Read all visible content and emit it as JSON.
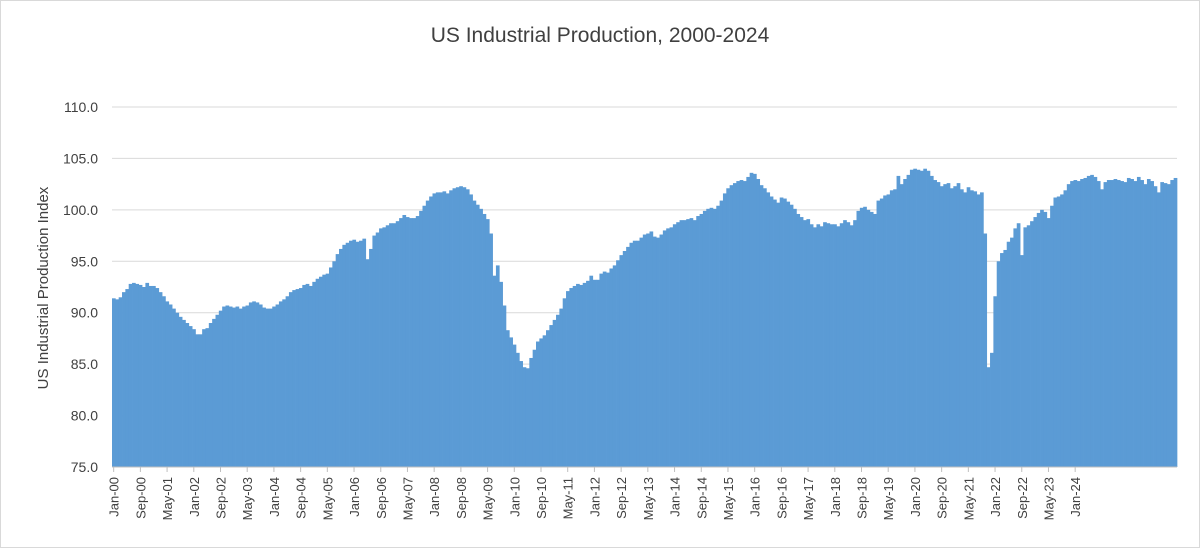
{
  "chart_data": {
    "type": "bar",
    "title": "US Industrial Production, 2000-2024",
    "xlabel": "",
    "ylabel": "US Industrial Production Index",
    "ylim": [
      75,
      110
    ],
    "yticks": [
      "75.0",
      "80.0",
      "85.0",
      "90.0",
      "95.0",
      "100.0",
      "105.0",
      "110.0"
    ],
    "xtick_labels": [
      "Jan-00",
      "Sep-00",
      "May-01",
      "Jan-02",
      "Sep-02",
      "May-03",
      "Jan-04",
      "Sep-04",
      "May-05",
      "Jan-06",
      "Sep-06",
      "May-07",
      "Jan-08",
      "Sep-08",
      "May-09",
      "Jan-10",
      "Sep-10",
      "May-11",
      "Jan-12",
      "Sep-12",
      "May-13",
      "Jan-14",
      "Sep-14",
      "May-15",
      "Jan-16",
      "Sep-16",
      "May-17",
      "Jan-18",
      "Sep-18",
      "May-19",
      "Jan-20",
      "Sep-20",
      "May-21",
      "Jan-22",
      "Sep-22",
      "May-23",
      "Jan-24"
    ],
    "x_start": "Jan-00",
    "x_end": "Jun-24",
    "grid": true,
    "legend": "none",
    "bar_color": "#5b9bd5",
    "values": [
      91.4,
      91.3,
      91.5,
      92.0,
      92.3,
      92.8,
      92.9,
      92.8,
      92.7,
      92.5,
      92.9,
      92.6,
      92.6,
      92.4,
      92.0,
      91.6,
      91.1,
      90.8,
      90.4,
      90.0,
      89.6,
      89.3,
      89.0,
      88.7,
      88.4,
      87.9,
      87.9,
      88.4,
      88.5,
      89.0,
      89.4,
      89.8,
      90.2,
      90.6,
      90.7,
      90.6,
      90.5,
      90.6,
      90.4,
      90.6,
      90.7,
      91.0,
      91.1,
      91.0,
      90.8,
      90.5,
      90.4,
      90.4,
      90.6,
      90.8,
      91.1,
      91.3,
      91.6,
      92.0,
      92.2,
      92.3,
      92.4,
      92.7,
      92.8,
      92.6,
      93.0,
      93.3,
      93.5,
      93.7,
      93.8,
      94.4,
      95.0,
      95.7,
      96.2,
      96.6,
      96.8,
      97.0,
      97.1,
      96.9,
      97.0,
      97.2,
      95.2,
      96.2,
      97.5,
      97.8,
      98.2,
      98.3,
      98.5,
      98.7,
      98.7,
      98.9,
      99.2,
      99.5,
      99.3,
      99.2,
      99.2,
      99.4,
      99.9,
      100.4,
      100.9,
      101.3,
      101.6,
      101.7,
      101.7,
      101.8,
      101.6,
      101.9,
      102.1,
      102.2,
      102.3,
      102.2,
      102.0,
      101.5,
      100.9,
      100.5,
      100.1,
      99.6,
      99.1,
      97.7,
      93.6,
      94.6,
      93.0,
      90.7,
      88.3,
      87.6,
      86.9,
      86.1,
      85.3,
      84.7,
      84.6,
      85.6,
      86.4,
      87.2,
      87.5,
      87.8,
      88.3,
      88.8,
      89.3,
      89.8,
      90.4,
      91.4,
      92.1,
      92.4,
      92.6,
      92.8,
      92.7,
      92.9,
      93.1,
      93.6,
      93.2,
      93.2,
      93.8,
      94.0,
      93.9,
      94.3,
      94.6,
      95.1,
      95.6,
      96.0,
      96.4,
      96.8,
      97.0,
      97.0,
      97.3,
      97.6,
      97.7,
      97.9,
      97.4,
      97.3,
      97.6,
      98.0,
      98.2,
      98.3,
      98.6,
      98.8,
      99.0,
      99.0,
      99.1,
      99.2,
      99.0,
      99.4,
      99.6,
      99.9,
      100.1,
      100.2,
      100.1,
      100.4,
      100.9,
      101.6,
      102.1,
      102.4,
      102.6,
      102.8,
      102.9,
      102.8,
      103.2,
      103.6,
      103.5,
      103.0,
      102.4,
      102.1,
      101.7,
      101.3,
      101.0,
      100.7,
      101.2,
      101.1,
      100.8,
      100.5,
      100.1,
      99.6,
      99.3,
      99.0,
      99.1,
      98.6,
      98.3,
      98.6,
      98.4,
      98.8,
      98.7,
      98.6,
      98.6,
      98.4,
      98.7,
      99.0,
      98.8,
      98.5,
      99.0,
      99.9,
      100.2,
      100.3,
      100.0,
      99.8,
      99.6,
      100.9,
      101.1,
      101.4,
      101.5,
      101.9,
      102.0,
      103.3,
      102.5,
      103.0,
      103.4,
      103.9,
      104.0,
      103.9,
      103.8,
      104.0,
      103.8,
      103.3,
      102.9,
      102.7,
      102.3,
      102.5,
      102.6,
      102.1,
      102.3,
      102.6,
      102.0,
      101.7,
      102.2,
      101.9,
      101.8,
      101.5,
      101.7,
      97.7,
      84.7,
      86.1,
      91.6,
      95.0,
      95.8,
      96.1,
      96.9,
      97.3,
      98.2,
      98.7,
      95.6,
      98.3,
      98.5,
      98.9,
      99.3,
      99.7,
      100.0,
      99.8,
      99.2,
      100.4,
      101.2,
      101.3,
      101.5,
      101.9,
      102.5,
      102.8,
      102.9,
      102.8,
      103.0,
      103.1,
      103.3,
      103.4,
      103.2,
      102.8,
      102.0,
      102.7,
      102.9,
      102.9,
      103.0,
      102.9,
      102.8,
      102.7,
      103.1,
      103.0,
      102.8,
      103.2,
      102.9,
      102.5,
      103.0,
      102.8,
      102.3,
      101.7,
      102.7,
      102.6,
      102.5,
      102.9,
      103.1
    ]
  }
}
